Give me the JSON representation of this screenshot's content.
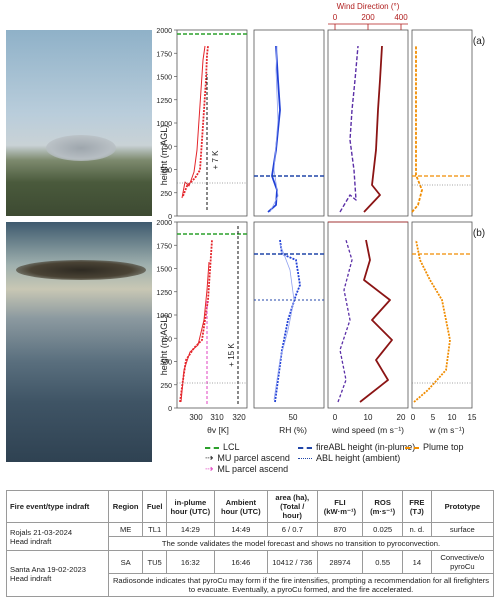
{
  "figure": {
    "wind_dir_title": "Wind Direction (°)",
    "wind_dir_ticks": [
      "0",
      "200",
      "400"
    ],
    "y_label": "height (m AGL)",
    "y_ticks": [
      "0",
      "250",
      "500",
      "750",
      "1000",
      "1250",
      "1500",
      "1750",
      "2000"
    ],
    "panel_a": "(a)",
    "panel_b": "(b)",
    "annot_a": "+ 7 K",
    "annot_b": "+ 15 K",
    "x_ticks_theta": [
      "300",
      "310",
      "320"
    ],
    "x_ticks_rh": [
      "50"
    ],
    "x_ticks_ws": [
      "0",
      "10",
      "20"
    ],
    "x_ticks_w": [
      "0",
      "5",
      "10",
      "15"
    ],
    "x_label_theta": "θv [K]",
    "x_label_rh": "RH (%)",
    "x_label_ws": "wind speed (m s⁻¹)",
    "x_label_w": "w (m s⁻¹)"
  },
  "legend": {
    "lcl": "LCL",
    "mu": "MU parcel ascend",
    "ml": "ML parcel ascend",
    "fire_abl": "fireABL height (in-plume)",
    "abl": "ABL height (ambient)",
    "plume_top": "Plume top"
  },
  "colors": {
    "theta": "#e4252b",
    "rh": "#1f3fd6",
    "wind_speed": "#8b1414",
    "wind_dir": "#5a2ea6",
    "w": "#f08c00",
    "lcl": "#2ca02c",
    "fire_abl": "#2146a8",
    "ml": "#e040c0"
  },
  "table": {
    "headers": [
      "Fire event/type indraft",
      "Region",
      "Fuel",
      "in-plume hour (UTC)",
      "Ambient hour (UTC)",
      "area (ha), (Total / hour)",
      "FLI (kW·m⁻¹)",
      "ROS (m·s⁻¹)",
      "FRE (TJ)",
      "Prototype"
    ],
    "rows": [
      {
        "event": "Rojals 21-03-2024",
        "type": "Head indraft",
        "cells": [
          "ME",
          "TL1",
          "14:29",
          "14:49",
          "6 / 0.7",
          "870",
          "0.025",
          "n. d.",
          "surface"
        ],
        "note": "The sonde validates the model forecast and shows no transition to pyroconvection."
      },
      {
        "event": "Santa Ana 19-02-2023",
        "type": "Head indraft",
        "cells": [
          "SA",
          "TU5",
          "16:32",
          "16:46",
          "10412 / 736",
          "28974",
          "0.55",
          "14",
          "Convective/o pyroCu"
        ],
        "note": "Radiosonde indicates that pyroCu may form if the fire intensifies, prompting a recommendation for all firefighters to evacuate. Eventually, a pyroCu formed, and the fire accelerated."
      }
    ]
  }
}
